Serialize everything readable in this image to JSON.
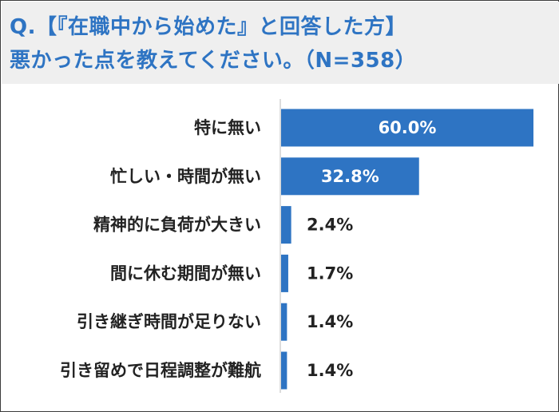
{
  "title_lines": [
    "Q.【『在職中から始めた』と回答した方】",
    "悪かった点を教えてください。（N=358）"
  ],
  "colors": {
    "bar": "#2e74c3",
    "title": "#2e74c3",
    "label": "#222222"
  },
  "chart_data": {
    "type": "bar",
    "orientation": "horizontal",
    "categories": [
      "特に無い",
      "忙しい・時間が無い",
      "精神的に負荷が大きい",
      "間に休む期間が無い",
      "引き継ぎ時間が足りない",
      "引き留めで日程調整が難航"
    ],
    "values": [
      60.0,
      32.8,
      2.4,
      1.7,
      1.4,
      1.4
    ],
    "data_labels": [
      "60.0%",
      "32.8%",
      "2.4%",
      "1.7%",
      "1.4%",
      "1.4%"
    ],
    "unit": "%",
    "xlim": [
      0,
      60
    ],
    "grid": false,
    "legend": "none"
  }
}
